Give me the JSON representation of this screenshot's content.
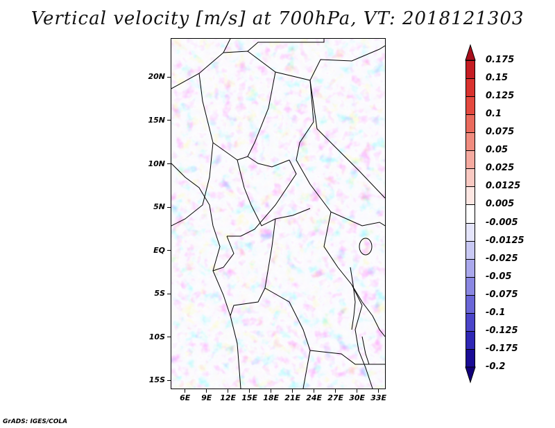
{
  "title": "Vertical velocity [m/s] at 700hPa, VT: 2018121303",
  "footer": "GrADS: IGES/COLA",
  "map": {
    "lat_labels": [
      "20N",
      "15N",
      "10N",
      "5N",
      "EQ",
      "5S",
      "10S",
      "15S"
    ],
    "lat_values": [
      20,
      15,
      10,
      5,
      0,
      -5,
      -10,
      -15
    ],
    "lon_labels": [
      "6E",
      "9E",
      "12E",
      "15E",
      "18E",
      "21E",
      "24E",
      "27E",
      "30E",
      "33E"
    ],
    "lon_values": [
      6,
      9,
      12,
      15,
      18,
      21,
      24,
      27,
      30,
      33
    ],
    "lon_range": [
      4,
      34
    ],
    "lat_range": [
      -16,
      24.5
    ]
  },
  "colorbar": {
    "labels": [
      "0.175",
      "0.15",
      "0.125",
      "0.1",
      "0.075",
      "0.05",
      "0.025",
      "0.0125",
      "0.005",
      "-0.005",
      "-0.0125",
      "-0.025",
      "-0.05",
      "-0.075",
      "-0.1",
      "-0.125",
      "-0.175",
      "-0.2"
    ],
    "colors": [
      "#a80f1c",
      "#c51d23",
      "#d9322e",
      "#e4493f",
      "#ea6b5d",
      "#f08c7f",
      "#f5aaa0",
      "#f9c9c2",
      "#fde7e3",
      "#ffffff",
      "#e5e5fb",
      "#c9c9f4",
      "#aaa8ec",
      "#8a87e2",
      "#6a66d7",
      "#4b45c9",
      "#2f27b5",
      "#1a0c95",
      "#12007a"
    ]
  }
}
